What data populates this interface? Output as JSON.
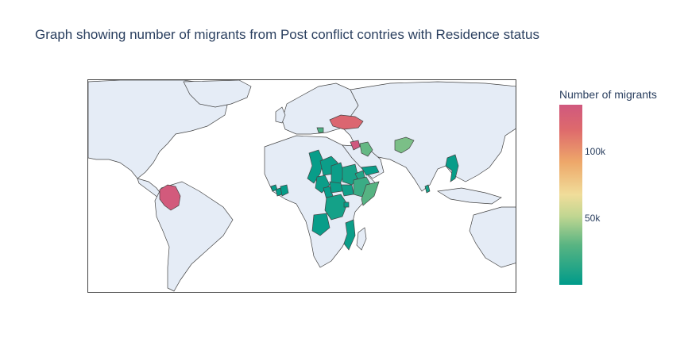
{
  "title": "Graph showing number of migrants from Post conflict contries with Residence status",
  "colorbar": {
    "title": "Number of migrants",
    "ticks": [
      {
        "label": "100k",
        "value": 100000
      },
      {
        "label": "50k",
        "value": 50000
      }
    ],
    "range": [
      0,
      135000
    ]
  },
  "colorscale": [
    "#009b8a",
    "#58b482",
    "#c0d691",
    "#f0dd9a",
    "#eea86a",
    "#de6a6c",
    "#d0587e"
  ],
  "countries": [
    {
      "name": "Colombia",
      "value": 132000
    },
    {
      "name": "Ukraine",
      "value": 118000
    },
    {
      "name": "Syria",
      "value": 135000
    },
    {
      "name": "Afghanistan",
      "value": 30000
    },
    {
      "name": "Iraq",
      "value": 25000
    },
    {
      "name": "Georgia",
      "value": 20000
    },
    {
      "name": "Somalia",
      "value": 22000
    },
    {
      "name": "Ethiopia",
      "value": 15000
    },
    {
      "name": "Eritrea",
      "value": 9000
    },
    {
      "name": "Sudan",
      "value": 6000
    },
    {
      "name": "South Sudan",
      "value": 4000
    },
    {
      "name": "Chad",
      "value": 3000
    },
    {
      "name": "Niger",
      "value": 3000
    },
    {
      "name": "Mali",
      "value": 2000
    },
    {
      "name": "Nigeria",
      "value": 3000
    },
    {
      "name": "Cameroon",
      "value": 2000
    },
    {
      "name": "Central African Republic",
      "value": 3000
    },
    {
      "name": "DR Congo",
      "value": 5000
    },
    {
      "name": "Angola",
      "value": 2000
    },
    {
      "name": "Mozambique",
      "value": 3000
    },
    {
      "name": "Burundi",
      "value": 2000
    },
    {
      "name": "Sierra Leone",
      "value": 1500
    },
    {
      "name": "Liberia",
      "value": 1500
    },
    {
      "name": "Ivory Coast",
      "value": 1500
    },
    {
      "name": "Yemen",
      "value": 2000
    },
    {
      "name": "Sri Lanka",
      "value": 5000
    },
    {
      "name": "Myanmar",
      "value": 2000
    }
  ]
}
